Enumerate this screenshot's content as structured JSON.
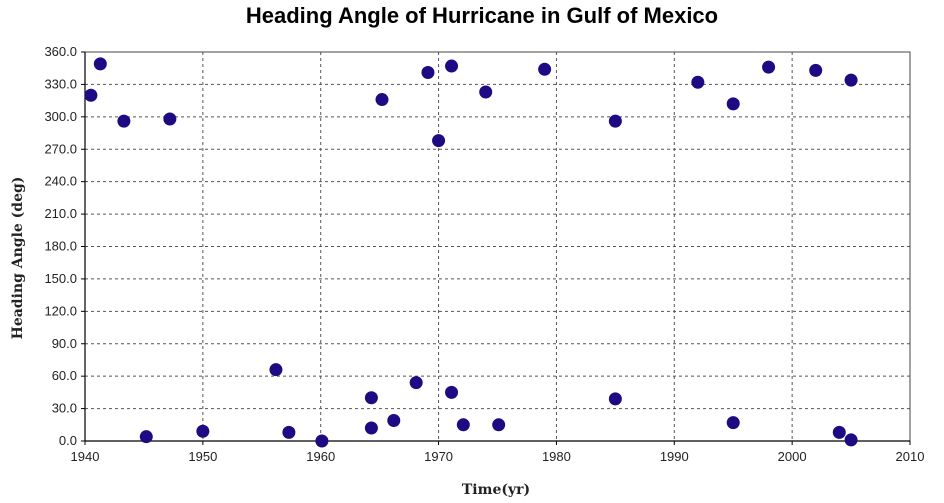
{
  "chart_data": {
    "type": "scatter",
    "title": "Heading Angle of Hurricane in Gulf of Mexico",
    "xlabel": "Time(yr)",
    "ylabel": "Heading Angle (deg)",
    "xlim": [
      1940,
      2010
    ],
    "ylim": [
      0,
      360
    ],
    "x_ticks": [
      1940,
      1950,
      1960,
      1970,
      1980,
      1990,
      2000,
      2010
    ],
    "y_ticks": [
      0,
      30,
      60,
      90,
      120,
      150,
      180,
      210,
      240,
      270,
      300,
      330,
      360
    ],
    "x_tick_labels": [
      "1940",
      "1950",
      "1960",
      "1970",
      "1980",
      "1990",
      "2000",
      "2010"
    ],
    "y_tick_labels": [
      "0.0",
      "30.0",
      "60.0",
      "90.0",
      "120.0",
      "150.0",
      "180.0",
      "210.0",
      "240.0",
      "270.0",
      "300.0",
      "330.0",
      "360.0"
    ],
    "grid": true,
    "marker_color": "#1e0a82",
    "points": [
      {
        "x": 1940.5,
        "y": 320
      },
      {
        "x": 1941.3,
        "y": 349
      },
      {
        "x": 1943.3,
        "y": 296
      },
      {
        "x": 1945.2,
        "y": 4
      },
      {
        "x": 1947.2,
        "y": 298
      },
      {
        "x": 1950.0,
        "y": 9
      },
      {
        "x": 1956.2,
        "y": 66
      },
      {
        "x": 1957.3,
        "y": 8
      },
      {
        "x": 1960.1,
        "y": 0
      },
      {
        "x": 1964.3,
        "y": 40
      },
      {
        "x": 1964.3,
        "y": 12
      },
      {
        "x": 1965.2,
        "y": 316
      },
      {
        "x": 1966.2,
        "y": 19
      },
      {
        "x": 1968.1,
        "y": 54
      },
      {
        "x": 1969.1,
        "y": 341
      },
      {
        "x": 1970.0,
        "y": 278
      },
      {
        "x": 1971.1,
        "y": 347
      },
      {
        "x": 1971.1,
        "y": 45
      },
      {
        "x": 1972.1,
        "y": 15
      },
      {
        "x": 1974.0,
        "y": 323
      },
      {
        "x": 1975.1,
        "y": 15
      },
      {
        "x": 1979.0,
        "y": 344
      },
      {
        "x": 1985.0,
        "y": 296
      },
      {
        "x": 1985.0,
        "y": 39
      },
      {
        "x": 1992.0,
        "y": 332
      },
      {
        "x": 1995.0,
        "y": 312
      },
      {
        "x": 1995.0,
        "y": 17
      },
      {
        "x": 1998.0,
        "y": 346
      },
      {
        "x": 2002.0,
        "y": 343
      },
      {
        "x": 2004.0,
        "y": 8
      },
      {
        "x": 2005.0,
        "y": 334
      },
      {
        "x": 2005.0,
        "y": 1
      }
    ]
  }
}
